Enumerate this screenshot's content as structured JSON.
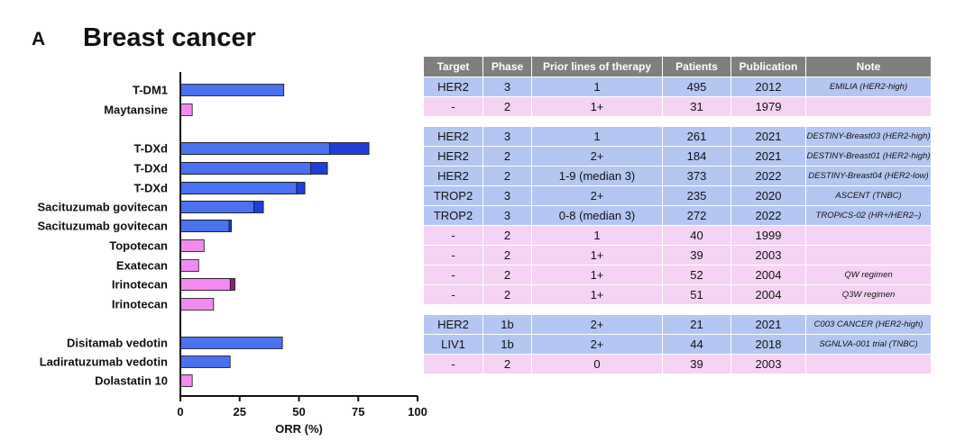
{
  "panel": {
    "letter": "A",
    "title": "Breast cancer"
  },
  "colors": {
    "blue_bar": "#4a72ee",
    "blue_extension": "#1f3fd8",
    "pink_bar": "#f28af0",
    "pink_extension": "#8a1f7d",
    "table_header": "#7f7f7f",
    "row_blue": "#b4c7f3",
    "row_pink": "#f6d3f4"
  },
  "chart_data": {
    "type": "bar",
    "orientation": "horizontal",
    "xlabel": "ORR (%)",
    "xlim": [
      0,
      100
    ],
    "xticks": [
      0,
      25,
      50,
      75,
      100
    ],
    "grid": false,
    "legend": "none",
    "rows": [
      {
        "label": "T-DM1",
        "value": 43.6,
        "extended_value": 43.6,
        "color": "blue",
        "group": 1
      },
      {
        "label": "Maytansine",
        "value": 5,
        "extended_value": 5,
        "color": "pink",
        "group": 1
      },
      {
        "label": "T-DXd",
        "value": 63,
        "extended_value": 79.5,
        "color": "blue",
        "group": 2
      },
      {
        "label": "T-DXd",
        "value": 55,
        "extended_value": 62,
        "color": "blue",
        "group": 2
      },
      {
        "label": "T-DXd",
        "value": 49,
        "extended_value": 52.5,
        "color": "blue",
        "group": 2
      },
      {
        "label": "Sacituzumab govitecan",
        "value": 31,
        "extended_value": 35,
        "color": "blue",
        "group": 2
      },
      {
        "label": "Sacituzumab govitecan",
        "value": 20.5,
        "extended_value": 21.5,
        "color": "blue",
        "group": 2
      },
      {
        "label": "Topotecan",
        "value": 10,
        "extended_value": 10,
        "color": "pink",
        "group": 2
      },
      {
        "label": "Exatecan",
        "value": 7.7,
        "extended_value": 7.7,
        "color": "pink",
        "group": 2
      },
      {
        "label": "Irinotecan",
        "value": 21,
        "extended_value": 23,
        "color": "pink",
        "group": 2
      },
      {
        "label": "Irinotecan",
        "value": 14,
        "extended_value": 14,
        "color": "pink",
        "group": 2
      },
      {
        "label": "Disitamab vedotin",
        "value": 43,
        "extended_value": 43,
        "color": "blue",
        "group": 3
      },
      {
        "label": "Ladiratuzumab vedotin",
        "value": 21,
        "extended_value": 21,
        "color": "blue",
        "group": 3
      },
      {
        "label": "Dolastatin 10",
        "value": 5,
        "extended_value": 5,
        "color": "pink",
        "group": 3
      }
    ]
  },
  "table": {
    "columns": [
      "Target",
      "Phase",
      "Prior lines of therapy",
      "Patients",
      "Publication",
      "Note"
    ],
    "rows": [
      {
        "type": "blue",
        "cells": [
          "HER2",
          "3",
          "1",
          "495",
          "2012",
          "EMILIA (HER2-high)"
        ]
      },
      {
        "type": "pink",
        "cells": [
          "-",
          "2",
          "1+",
          "31",
          "1979",
          ""
        ]
      },
      {
        "type": "gap"
      },
      {
        "type": "blue",
        "cells": [
          "HER2",
          "3",
          "1",
          "261",
          "2021",
          "DESTINY-Breast03 (HER2-high)"
        ]
      },
      {
        "type": "blue",
        "cells": [
          "HER2",
          "2",
          "2+",
          "184",
          "2021",
          "DESTINY-Breast01 (HER2-high)"
        ]
      },
      {
        "type": "blue",
        "cells": [
          "HER2",
          "2",
          "1-9 (median 3)",
          "373",
          "2022",
          "DESTINY-Breast04 (HER2-low)"
        ]
      },
      {
        "type": "blue",
        "cells": [
          "TROP2",
          "3",
          "2+",
          "235",
          "2020",
          "ASCENT (TNBC)"
        ]
      },
      {
        "type": "blue",
        "cells": [
          "TROP2",
          "3",
          "0-8 (median 3)",
          "272",
          "2022",
          "TROPiCS-02 (HR+/HER2–)"
        ]
      },
      {
        "type": "pink",
        "cells": [
          "-",
          "2",
          "1",
          "40",
          "1999",
          ""
        ]
      },
      {
        "type": "pink",
        "cells": [
          "-",
          "2",
          "1+",
          "39",
          "2003",
          ""
        ]
      },
      {
        "type": "pink",
        "cells": [
          "-",
          "2",
          "1+",
          "52",
          "2004",
          "QW regimen"
        ]
      },
      {
        "type": "pink",
        "cells": [
          "-",
          "2",
          "1+",
          "51",
          "2004",
          "Q3W regimen"
        ]
      },
      {
        "type": "gap"
      },
      {
        "type": "blue",
        "cells": [
          "HER2",
          "1b",
          "2+",
          "21",
          "2021",
          "C003 CANCER (HER2-high)"
        ]
      },
      {
        "type": "blue",
        "cells": [
          "LIV1",
          "1b",
          "2+",
          "44",
          "2018",
          "SGNLVA-001 trial (TNBC)"
        ]
      },
      {
        "type": "pink",
        "cells": [
          "-",
          "2",
          "0",
          "39",
          "2003",
          ""
        ]
      }
    ]
  }
}
